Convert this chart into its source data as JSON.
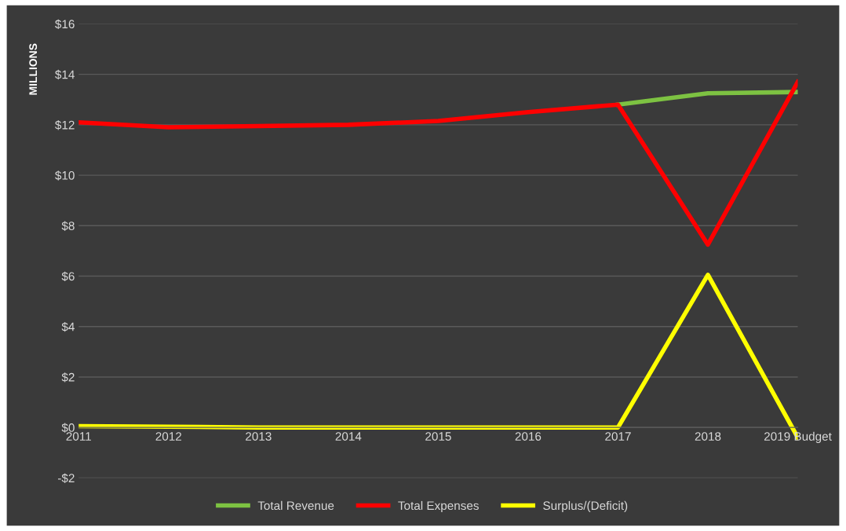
{
  "chart_data": {
    "type": "line",
    "ylabel": "MILLIONS",
    "categories": [
      "2011",
      "2012",
      "2013",
      "2014",
      "2015",
      "2016",
      "2017",
      "2018",
      "2019 Budget"
    ],
    "series": [
      {
        "name": "Total Revenue",
        "color": "#7dc242",
        "values": [
          null,
          null,
          null,
          null,
          null,
          null,
          12.8,
          13.25,
          13.3
        ]
      },
      {
        "name": "Total Expenses",
        "color": "#ff0000",
        "values": [
          12.1,
          11.9,
          11.95,
          12.0,
          12.15,
          12.5,
          12.8,
          7.25,
          13.7
        ]
      },
      {
        "name": "Surplus/(Deficit)",
        "color": "#ffff00",
        "values": [
          0.05,
          0.03,
          0,
          0,
          0,
          0,
          0,
          6.05,
          -0.4
        ]
      }
    ],
    "ylim": [
      -2,
      16
    ],
    "yticks": [
      {
        "value": -2,
        "label": "-$2"
      },
      {
        "value": 0,
        "label": "$0"
      },
      {
        "value": 2,
        "label": "$2"
      },
      {
        "value": 4,
        "label": "$4"
      },
      {
        "value": 6,
        "label": "$6"
      },
      {
        "value": 8,
        "label": "$8"
      },
      {
        "value": 10,
        "label": "$10"
      },
      {
        "value": 12,
        "label": "$12"
      },
      {
        "value": 14,
        "label": "$14"
      },
      {
        "value": 16,
        "label": "$16"
      }
    ],
    "grid": "y",
    "legend": "bottom",
    "marker": "none",
    "line_style": "solid"
  }
}
